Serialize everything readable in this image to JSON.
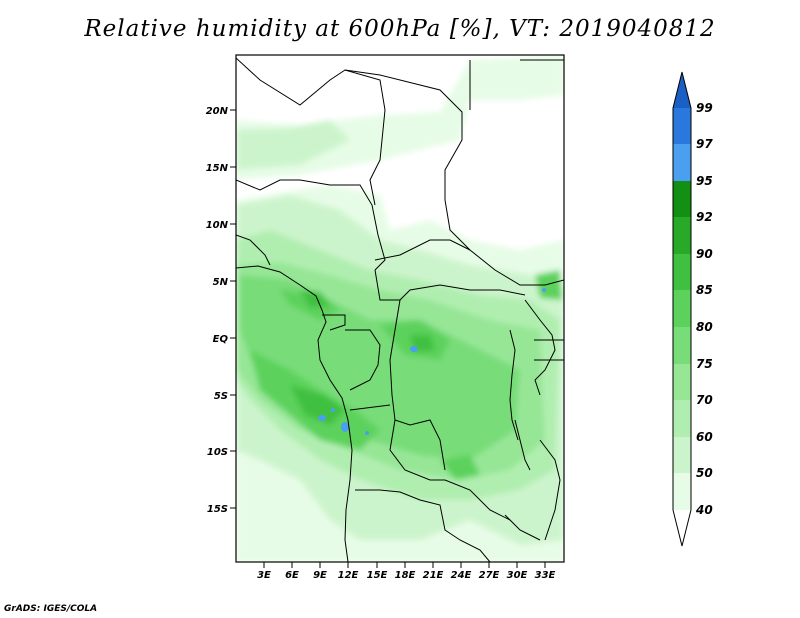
{
  "title": "Relative humidity at 600hPa [%], VT: 2019040812",
  "credit": "GrADS: IGES/COLA",
  "lat_ticks": [
    "20N",
    "15N",
    "10N",
    "5N",
    "EQ",
    "5S",
    "10S",
    "15S"
  ],
  "lon_ticks": [
    "3E",
    "6E",
    "9E",
    "12E",
    "15E",
    "18E",
    "21E",
    "24E",
    "27E",
    "30E",
    "33E"
  ],
  "colorbar": {
    "labels": [
      "40",
      "50",
      "60",
      "70",
      "75",
      "80",
      "85",
      "90",
      "92",
      "95",
      "97",
      "99"
    ],
    "colors": {
      "below_40": "#ffffff",
      "40_50": "#e6fce6",
      "50_60": "#ccf4cc",
      "60_70": "#b0eeb0",
      "70_75": "#96e696",
      "75_80": "#78dc78",
      "80_85": "#5cd25c",
      "85_90": "#40c040",
      "90_92": "#28aa28",
      "92_95": "#139013",
      "95_97": "#4a9ff0",
      "97_99": "#2a78de",
      "above_99": "#1a5fc4"
    }
  }
}
